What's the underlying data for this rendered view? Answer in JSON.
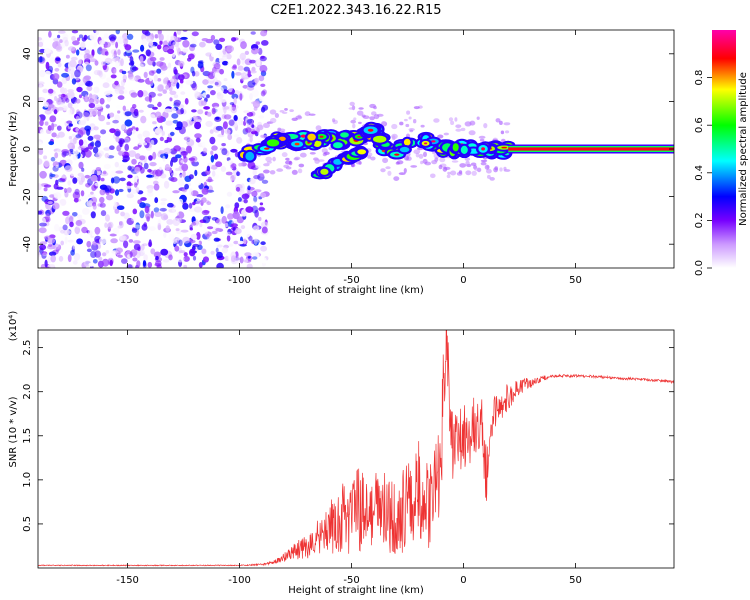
{
  "title": "C2E1.2022.343.16.22.R15",
  "chart_data": [
    {
      "type": "heatmap",
      "xlabel": "Height of straight line (km)",
      "ylabel": "Frequency (Hz)",
      "xlim": [
        -190,
        94
      ],
      "ylim": [
        -50,
        50
      ],
      "xticks": [
        -150,
        -100,
        -50,
        0,
        50
      ],
      "yticks": [
        -40,
        -20,
        0,
        20,
        40
      ],
      "colorbar": {
        "label": "Normalized spectral amplitude",
        "range": [
          0,
          1
        ],
        "ticks": [
          "0.0",
          "0.2",
          "0.4",
          "0.6",
          "0.8"
        ]
      },
      "features": {
        "noise_region_x": [
          -190,
          -88
        ],
        "frequency_track": [
          {
            "x": -100,
            "f": -5
          },
          {
            "x": -95,
            "f": -2
          },
          {
            "x": -90,
            "f": 0
          },
          {
            "x": -85,
            "f": 3
          },
          {
            "x": -80,
            "f": 4
          },
          {
            "x": -75,
            "f": 3
          },
          {
            "x": -70,
            "f": 4
          },
          {
            "x": -65,
            "f": 3
          },
          {
            "x": -60,
            "f": 5
          },
          {
            "x": -55,
            "f": 3
          },
          {
            "x": -50,
            "f": 6
          },
          {
            "x": -45,
            "f": 5
          },
          {
            "x": -40,
            "f": 8
          },
          {
            "x": -35,
            "f": 0
          },
          {
            "x": -30,
            "f": -2
          },
          {
            "x": -25,
            "f": 3
          },
          {
            "x": -20,
            "f": 6
          },
          {
            "x": -15,
            "f": 2
          },
          {
            "x": -10,
            "f": 1
          },
          {
            "x": -5,
            "f": 0
          },
          {
            "x": 0,
            "f": 0
          },
          {
            "x": 10,
            "f": 0
          },
          {
            "x": 20,
            "f": 0
          },
          {
            "x": 94,
            "f": 0
          }
        ],
        "lower_branch": [
          {
            "x": -65,
            "f": -11
          },
          {
            "x": -60,
            "f": -9
          },
          {
            "x": -55,
            "f": -5
          },
          {
            "x": -50,
            "f": -3
          },
          {
            "x": -45,
            "f": -1
          }
        ],
        "stable_line": {
          "x": [
            20,
            94
          ],
          "f": 0,
          "amplitude": 0.9
        }
      }
    },
    {
      "type": "line",
      "xlabel": "Height of straight line (km)",
      "ylabel": "SNR (10 * v/v)",
      "y_multiplier": "(x10⁴)",
      "xlim": [
        -190,
        94
      ],
      "ylim": [
        0,
        2.7
      ],
      "xticks": [
        -150,
        -100,
        -50,
        0,
        50
      ],
      "yticks": [
        0.5,
        1.0,
        1.5,
        2.0,
        2.5
      ],
      "ytick_labels": [
        "0.5",
        "1.0",
        "1.5",
        "2.0",
        "2.5"
      ],
      "color": "#ee3333",
      "series": [
        {
          "x": [
            -190,
            -150,
            -100,
            -90,
            -85,
            -80,
            -75,
            -70,
            -65,
            -60,
            -55,
            -50,
            -45,
            -40,
            -35,
            -30,
            -25,
            -20,
            -15,
            -10,
            -8,
            -5,
            0,
            5,
            8,
            10,
            12,
            15,
            20,
            25,
            30,
            35,
            40,
            50,
            60,
            70,
            80,
            90,
            94
          ],
          "y": [
            0.03,
            0.03,
            0.03,
            0.04,
            0.06,
            0.12,
            0.2,
            0.25,
            0.35,
            0.45,
            0.55,
            0.6,
            0.7,
            0.65,
            0.6,
            0.55,
            0.7,
            0.9,
            0.7,
            1.2,
            2.7,
            1.3,
            1.5,
            1.6,
            1.7,
            1.0,
            1.6,
            1.8,
            1.95,
            2.05,
            2.1,
            2.15,
            2.18,
            2.18,
            2.17,
            2.15,
            2.14,
            2.12,
            2.11
          ],
          "noise_amplitude": [
            0.005,
            0.005,
            0.005,
            0.01,
            0.02,
            0.05,
            0.1,
            0.15,
            0.2,
            0.3,
            0.4,
            0.45,
            0.5,
            0.5,
            0.5,
            0.45,
            0.5,
            0.55,
            0.5,
            0.55,
            0.6,
            0.5,
            0.4,
            0.35,
            0.3,
            0.4,
            0.25,
            0.2,
            0.15,
            0.1,
            0.06,
            0.03,
            0.02,
            0.015,
            0.015,
            0.015,
            0.015,
            0.015,
            0.015
          ]
        }
      ]
    }
  ]
}
